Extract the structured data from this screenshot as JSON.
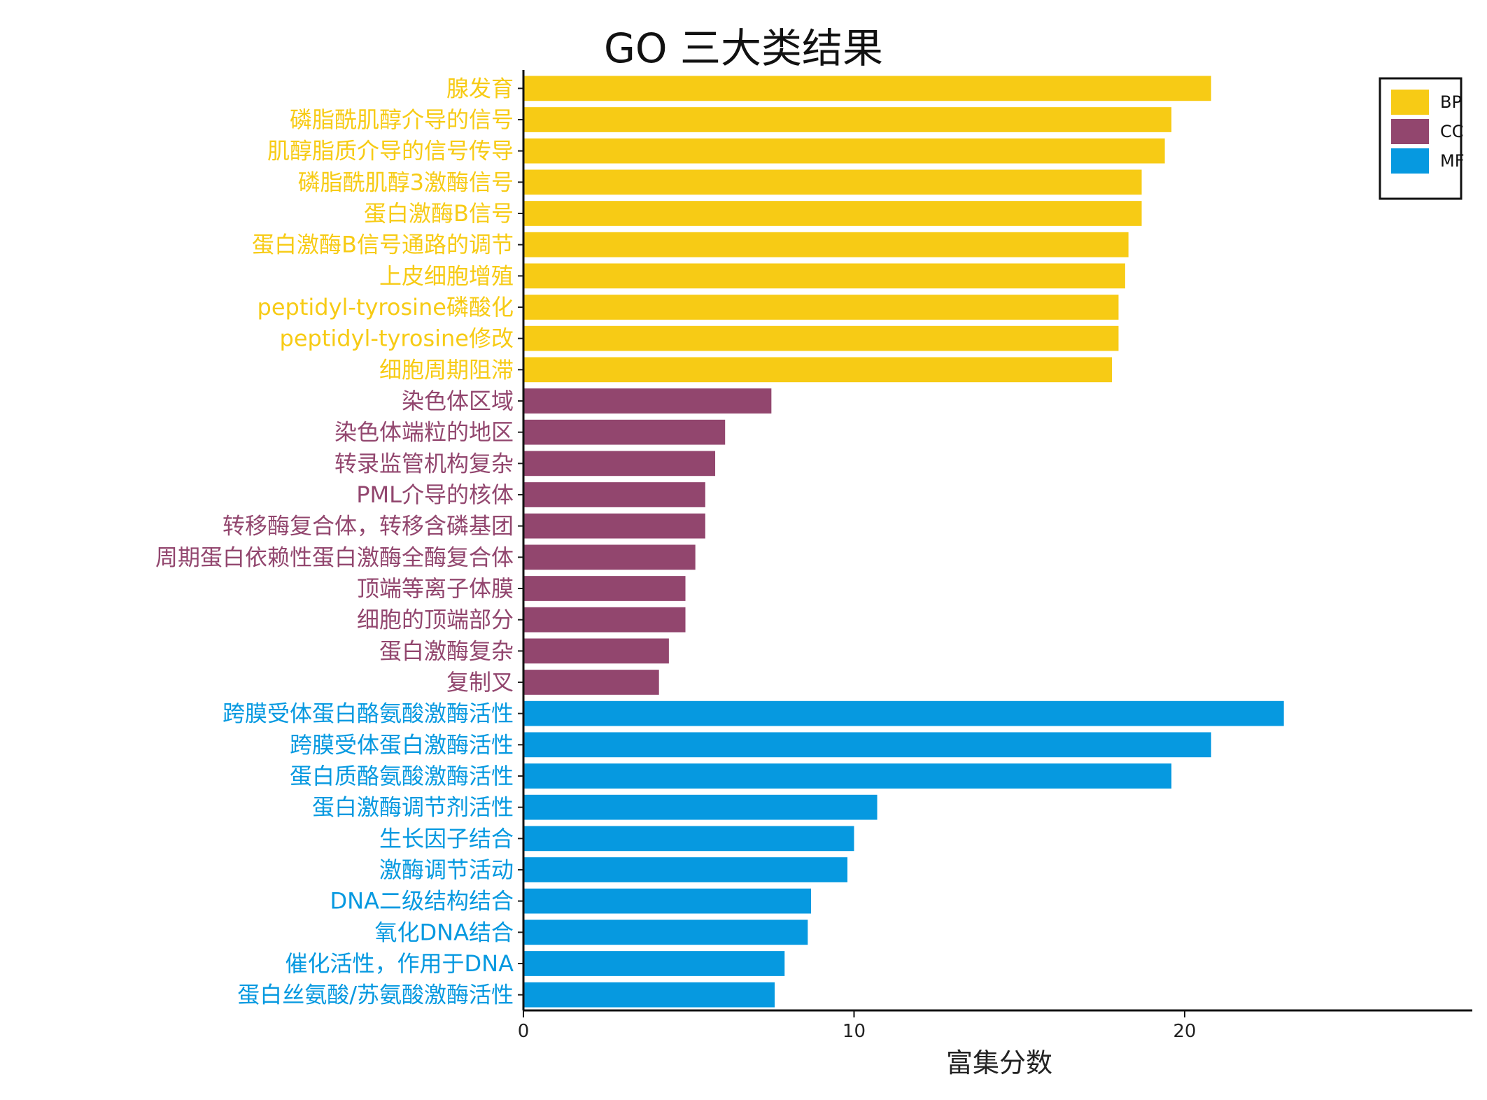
{
  "chart_data": {
    "type": "bar",
    "orientation": "horizontal",
    "title": "GO 三大类结果",
    "xlabel": "富集分数",
    "ylabel": "",
    "xlim": [
      0,
      28.7
    ],
    "xticks": [
      0,
      10,
      20
    ],
    "grid": false,
    "legend": {
      "position": "top-right",
      "entries": [
        {
          "name": "BP",
          "color": "#F7CB15"
        },
        {
          "name": "CC",
          "color": "#92466E"
        },
        {
          "name": "MF",
          "color": "#0699E0"
        }
      ]
    },
    "categories": [
      "腺发育",
      "磷脂酰肌醇介导的信号",
      "肌醇脂质介导的信号传导",
      "磷脂酰肌醇3激酶信号",
      "蛋白激酶B信号",
      "蛋白激酶B信号通路的调节",
      "上皮细胞增殖",
      "peptidyl-tyrosine磷酸化",
      "peptidyl-tyrosine修改",
      "细胞周期阻滞",
      "染色体区域",
      "染色体端粒的地区",
      "转录监管机构复杂",
      "PML介导的核体",
      "转移酶复合体，转移含磷基团",
      "周期蛋白依赖性蛋白激酶全酶复合体",
      "顶端等离子体膜",
      "细胞的顶端部分",
      "蛋白激酶复杂",
      "复制叉",
      "跨膜受体蛋白酪氨酸激酶活性",
      "跨膜受体蛋白激酶活性",
      "蛋白质酪氨酸激酶活性",
      "蛋白激酶调节剂活性",
      "生长因子结合",
      "激酶调节活动",
      "DNA二级结构结合",
      "氧化DNA结合",
      "催化活性，作用于DNA",
      "蛋白丝氨酸/苏氨酸激酶活性"
    ],
    "groups": [
      "BP",
      "BP",
      "BP",
      "BP",
      "BP",
      "BP",
      "BP",
      "BP",
      "BP",
      "BP",
      "CC",
      "CC",
      "CC",
      "CC",
      "CC",
      "CC",
      "CC",
      "CC",
      "CC",
      "CC",
      "MF",
      "MF",
      "MF",
      "MF",
      "MF",
      "MF",
      "MF",
      "MF",
      "MF",
      "MF"
    ],
    "values": [
      20.8,
      19.6,
      19.4,
      18.7,
      18.7,
      18.3,
      18.2,
      18.0,
      18.0,
      17.8,
      7.5,
      6.1,
      5.8,
      5.5,
      5.5,
      5.2,
      4.9,
      4.9,
      4.4,
      4.1,
      23.0,
      20.8,
      19.6,
      10.7,
      10.0,
      9.8,
      8.7,
      8.6,
      7.9,
      7.6
    ]
  }
}
